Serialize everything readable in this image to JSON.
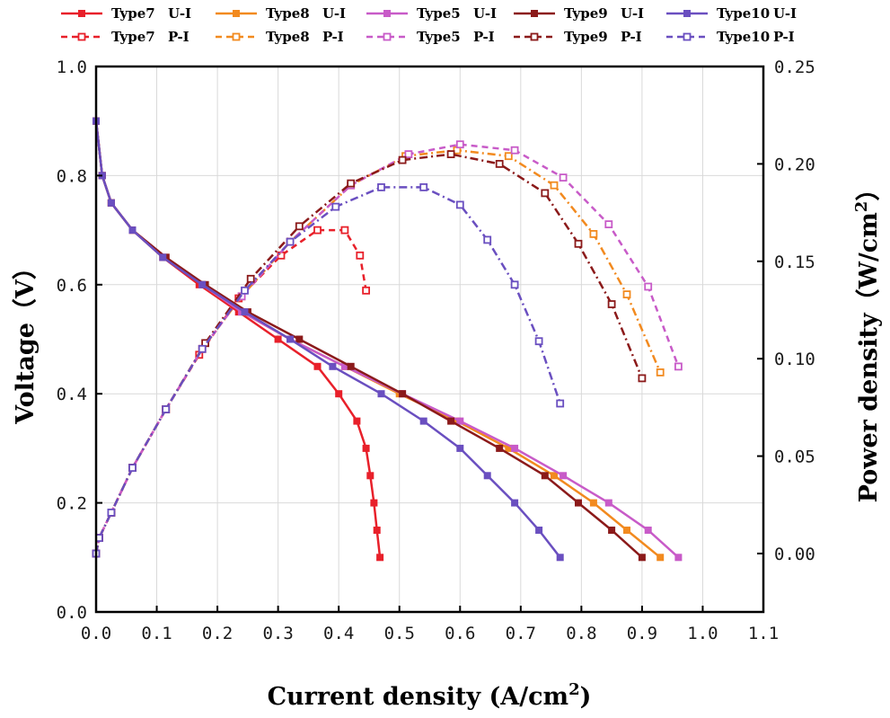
{
  "chart_data": {
    "type": "line",
    "xlabel": "Current density",
    "xlabel_unit_base": "(A/cm",
    "xlabel_unit_exp": "2",
    "xlabel_unit_close": ")",
    "ylabel_left": "Voltage（V）",
    "ylabel_right": "Power density（W/cm",
    "ylabel_right_exp": "2",
    "ylabel_right_close": "）",
    "xlim": [
      0.0,
      1.1
    ],
    "ylim_left": [
      0.0,
      1.0
    ],
    "ylim_right": [
      -0.03,
      0.25
    ],
    "xticks": [
      "0.0",
      "0.1",
      "0.2",
      "0.3",
      "0.4",
      "0.5",
      "0.6",
      "0.7",
      "0.8",
      "0.9",
      "1.0",
      "1.1"
    ],
    "yticks_left": [
      "0.0",
      "0.2",
      "0.4",
      "0.6",
      "0.8",
      "1.0"
    ],
    "yticks_right": [
      "0.00",
      "0.05",
      "0.10",
      "0.15",
      "0.20",
      "0.25"
    ],
    "grid": true,
    "legend_position": "top",
    "series": [
      {
        "name": "Type7 U-I",
        "label_a": "Type7",
        "label_b": "U-I",
        "axis": "left",
        "style": "solid",
        "color": "#e8202a",
        "x": [
          0.0,
          0.01,
          0.025,
          0.06,
          0.11,
          0.17,
          0.235,
          0.3,
          0.365,
          0.4,
          0.43,
          0.445,
          0.452,
          0.458,
          0.463,
          0.468
        ],
        "y": [
          0.9,
          0.8,
          0.75,
          0.7,
          0.65,
          0.6,
          0.55,
          0.5,
          0.45,
          0.4,
          0.35,
          0.3,
          0.25,
          0.2,
          0.15,
          0.1
        ]
      },
      {
        "name": "Type8 U-I",
        "label_a": "Type8",
        "label_b": "U-I",
        "axis": "left",
        "style": "solid",
        "color": "#f28a1f",
        "x": [
          0.0,
          0.01,
          0.025,
          0.06,
          0.115,
          0.175,
          0.24,
          0.32,
          0.41,
          0.5,
          0.595,
          0.68,
          0.755,
          0.82,
          0.875,
          0.93
        ],
        "y": [
          0.9,
          0.8,
          0.75,
          0.7,
          0.65,
          0.6,
          0.55,
          0.5,
          0.45,
          0.4,
          0.35,
          0.3,
          0.25,
          0.2,
          0.15,
          0.1
        ]
      },
      {
        "name": "Type5 U-I",
        "label_a": "Type5",
        "label_b": "U-I",
        "axis": "left",
        "style": "solid",
        "color": "#c85bc8",
        "x": [
          0.0,
          0.01,
          0.025,
          0.06,
          0.115,
          0.175,
          0.24,
          0.32,
          0.41,
          0.505,
          0.6,
          0.69,
          0.77,
          0.845,
          0.91,
          0.96
        ],
        "y": [
          0.9,
          0.8,
          0.75,
          0.7,
          0.65,
          0.6,
          0.55,
          0.5,
          0.45,
          0.4,
          0.35,
          0.3,
          0.25,
          0.2,
          0.15,
          0.1
        ]
      },
      {
        "name": "Type9 U-I",
        "label_a": "Type9",
        "label_b": "U-I",
        "axis": "left",
        "style": "solid",
        "color": "#8b1a1a",
        "x": [
          0.0,
          0.01,
          0.025,
          0.06,
          0.115,
          0.18,
          0.25,
          0.335,
          0.42,
          0.505,
          0.585,
          0.665,
          0.74,
          0.795,
          0.85,
          0.9
        ],
        "y": [
          0.9,
          0.8,
          0.75,
          0.7,
          0.65,
          0.6,
          0.55,
          0.5,
          0.45,
          0.4,
          0.35,
          0.3,
          0.25,
          0.2,
          0.15,
          0.1
        ]
      },
      {
        "name": "Type10 U-I",
        "label_a": "Type10",
        "label_b": "U-I",
        "axis": "left",
        "style": "solid",
        "color": "#6a4fc0",
        "x": [
          0.0,
          0.01,
          0.025,
          0.06,
          0.11,
          0.175,
          0.245,
          0.32,
          0.39,
          0.47,
          0.54,
          0.6,
          0.645,
          0.69,
          0.73,
          0.765
        ],
        "y": [
          0.9,
          0.8,
          0.75,
          0.7,
          0.65,
          0.6,
          0.55,
          0.5,
          0.45,
          0.4,
          0.35,
          0.3,
          0.25,
          0.2,
          0.15,
          0.1
        ]
      },
      {
        "name": "Type7 P-I",
        "label_a": "Type7",
        "label_b": "P-I",
        "axis": "right",
        "style": "dashed",
        "color": "#e8202a",
        "x": [
          0.0,
          0.005,
          0.025,
          0.06,
          0.115,
          0.17,
          0.235,
          0.305,
          0.365,
          0.41,
          0.435,
          0.445
        ],
        "y": [
          0.0,
          0.008,
          0.021,
          0.044,
          0.074,
          0.102,
          0.131,
          0.153,
          0.166,
          0.166,
          0.153,
          0.135
        ]
      },
      {
        "name": "Type8 P-I",
        "label_a": "Type8",
        "label_b": "P-I",
        "axis": "right",
        "style": "dashdot",
        "color": "#f28a1f",
        "x": [
          0.0,
          0.005,
          0.025,
          0.06,
          0.115,
          0.175,
          0.24,
          0.32,
          0.42,
          0.51,
          0.595,
          0.68,
          0.755,
          0.82,
          0.875,
          0.93
        ],
        "y": [
          0.0,
          0.008,
          0.021,
          0.044,
          0.074,
          0.105,
          0.132,
          0.16,
          0.189,
          0.204,
          0.207,
          0.204,
          0.189,
          0.164,
          0.133,
          0.093
        ]
      },
      {
        "name": "Type5 P-I",
        "label_a": "Type5",
        "label_b": "P-I",
        "axis": "right",
        "style": "dashed",
        "color": "#c85bc8",
        "x": [
          0.0,
          0.005,
          0.025,
          0.06,
          0.115,
          0.175,
          0.24,
          0.32,
          0.42,
          0.515,
          0.6,
          0.69,
          0.77,
          0.845,
          0.91,
          0.96
        ],
        "y": [
          0.0,
          0.008,
          0.021,
          0.044,
          0.074,
          0.105,
          0.132,
          0.16,
          0.189,
          0.205,
          0.21,
          0.207,
          0.193,
          0.169,
          0.137,
          0.096
        ]
      },
      {
        "name": "Type9 P-I",
        "label_a": "Type9",
        "label_b": "P-I",
        "axis": "right",
        "style": "dashdot",
        "color": "#8b1a1a",
        "x": [
          0.0,
          0.005,
          0.025,
          0.06,
          0.115,
          0.18,
          0.255,
          0.335,
          0.42,
          0.505,
          0.585,
          0.665,
          0.74,
          0.795,
          0.85,
          0.9
        ],
        "y": [
          0.0,
          0.008,
          0.021,
          0.044,
          0.074,
          0.108,
          0.141,
          0.168,
          0.19,
          0.202,
          0.205,
          0.2,
          0.185,
          0.159,
          0.128,
          0.09
        ]
      },
      {
        "name": "Type10 P-I",
        "label_a": "Type10",
        "label_b": "P-I",
        "axis": "right",
        "style": "dashdot",
        "color": "#6a4fc0",
        "x": [
          0.0,
          0.005,
          0.025,
          0.06,
          0.115,
          0.175,
          0.245,
          0.32,
          0.395,
          0.47,
          0.54,
          0.6,
          0.645,
          0.69,
          0.73,
          0.765
        ],
        "y": [
          0.0,
          0.008,
          0.021,
          0.044,
          0.074,
          0.105,
          0.135,
          0.16,
          0.178,
          0.188,
          0.188,
          0.179,
          0.161,
          0.138,
          0.109,
          0.077
        ]
      }
    ]
  }
}
